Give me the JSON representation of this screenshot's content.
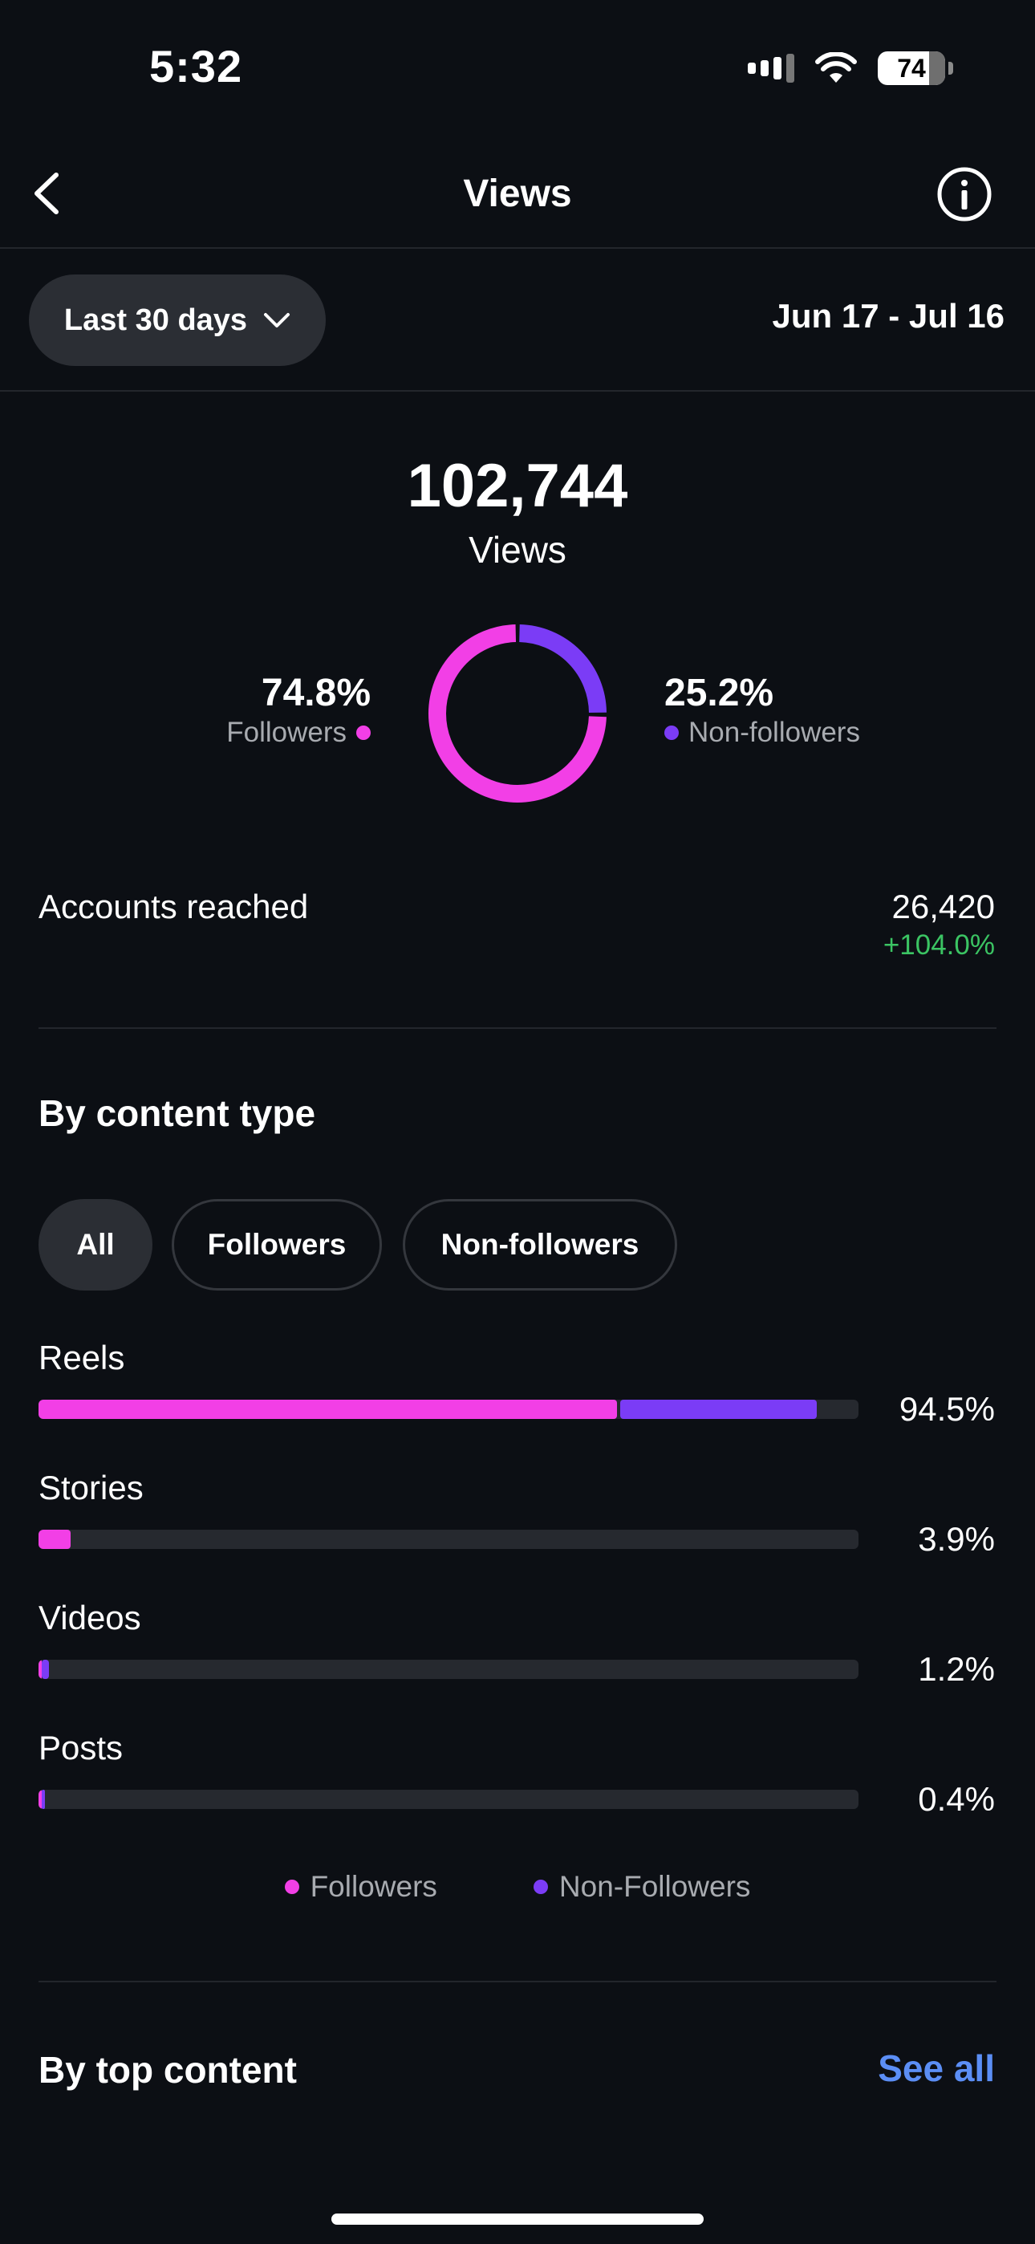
{
  "status": {
    "time": "5:32",
    "battery": "74"
  },
  "header": {
    "title": "Views"
  },
  "date_range": {
    "selected": "Last 30 days",
    "dates": "Jun 17 - Jul 16"
  },
  "summary": {
    "total": "102,744",
    "label": "Views"
  },
  "audience": {
    "followers": {
      "percent": "74.8%",
      "label": "Followers",
      "share": 0.748
    },
    "non_followers": {
      "percent": "25.2%",
      "label": "Non-followers",
      "share": 0.252
    }
  },
  "accounts_reached": {
    "label": "Accounts reached",
    "value": "26,420",
    "change": "+104.0%"
  },
  "content_type": {
    "title": "By content type",
    "filters": [
      "All",
      "Followers",
      "Non-followers"
    ],
    "rows": [
      {
        "label": "Reels",
        "percent": "94.5%",
        "followers": 0.705,
        "non_followers": 0.24
      },
      {
        "label": "Stories",
        "percent": "3.9%",
        "followers": 0.039,
        "non_followers": 0.0
      },
      {
        "label": "Videos",
        "percent": "1.2%",
        "followers": 0.003,
        "non_followers": 0.009
      },
      {
        "label": "Posts",
        "percent": "0.4%",
        "followers": 0.002,
        "non_followers": 0.002
      }
    ],
    "legend": {
      "followers": "Followers",
      "non_followers": "Non-Followers"
    }
  },
  "top_content": {
    "title": "By top content",
    "see_all": "See all"
  },
  "colors": {
    "followers": "#f23fe6",
    "non_followers": "#7b3cf6",
    "positive": "#3bc463",
    "link": "#5b8ef5"
  }
}
